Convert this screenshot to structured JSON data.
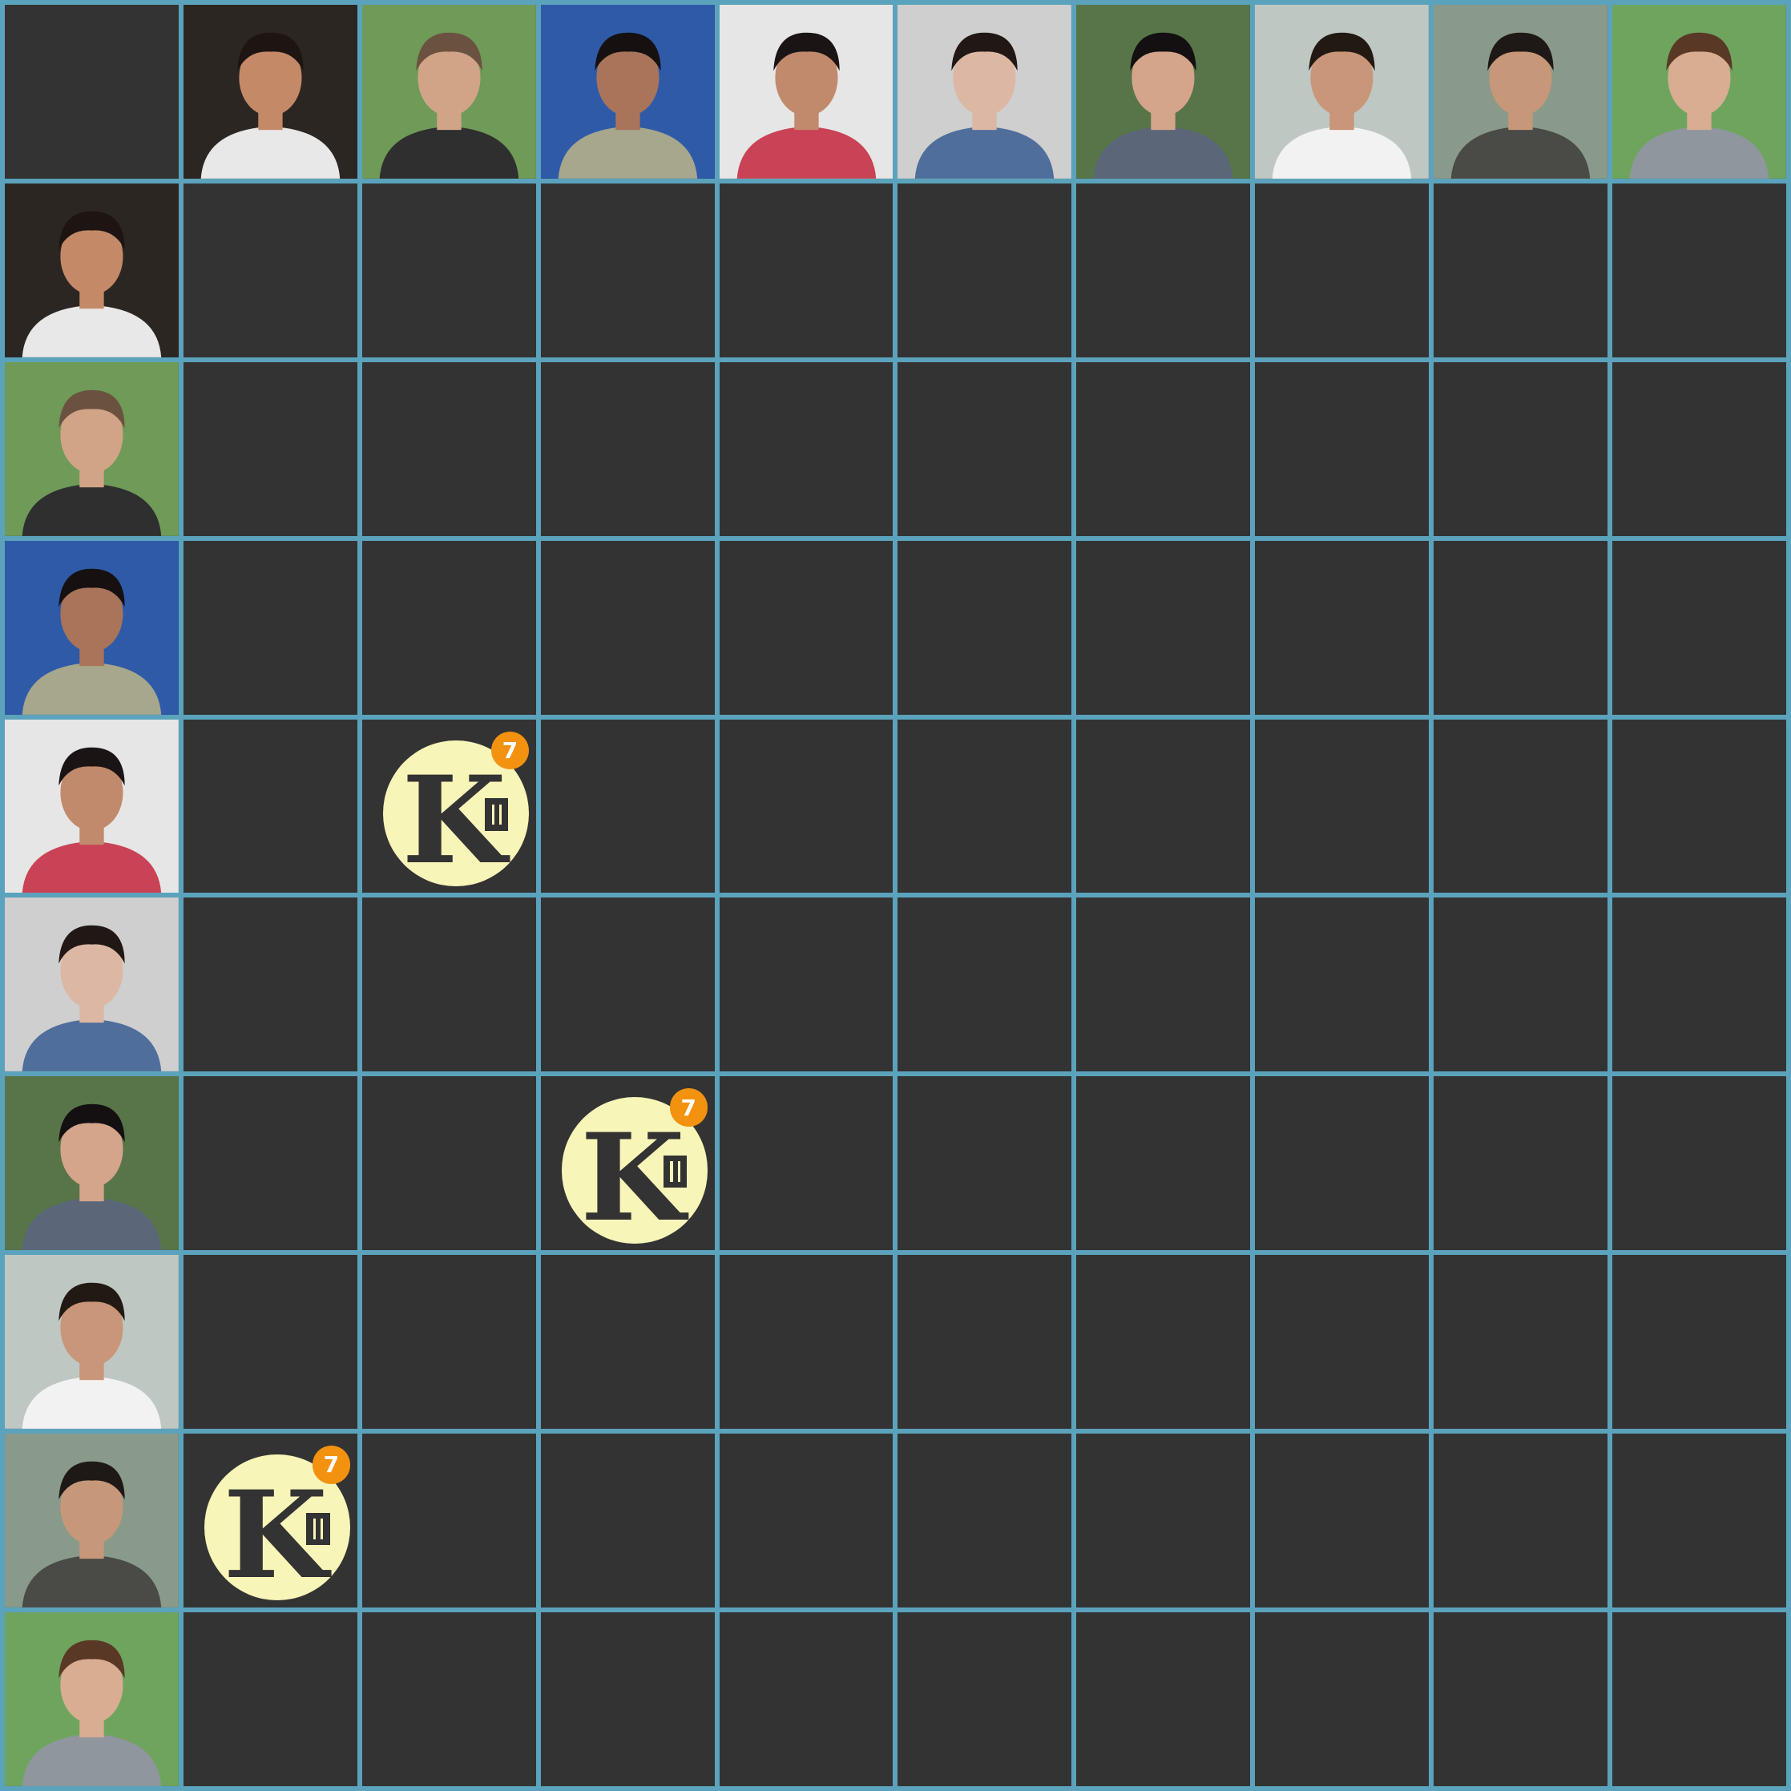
{
  "board": {
    "colors": {
      "grid": "#5ba3bc",
      "cell": "#333333",
      "badge": "#f8f5b8",
      "badge_dot": "#f2920f"
    },
    "players": [
      {
        "id": 1,
        "icon": "person-photo-icon",
        "skin": "#c48a68",
        "hair": "#1e1412",
        "shirt": "#e8e8e8",
        "bg": "#2c2623"
      },
      {
        "id": 2,
        "icon": "person-photo-icon",
        "skin": "#d1a487",
        "hair": "#6b5240",
        "shirt": "#2f2f2f",
        "bg": "#6f9a58"
      },
      {
        "id": 3,
        "icon": "person-photo-icon",
        "skin": "#a9745a",
        "hair": "#161010",
        "shirt": "#a6a78d",
        "bg": "#2e5aa8"
      },
      {
        "id": 4,
        "icon": "person-photo-icon",
        "skin": "#c18a6c",
        "hair": "#1a1414",
        "shirt": "#c94255",
        "bg": "#e6e6e6"
      },
      {
        "id": 5,
        "icon": "person-photo-icon",
        "skin": "#dcb8a4",
        "hair": "#211715",
        "shirt": "#4f6e9c",
        "bg": "#cfcfcf"
      },
      {
        "id": 6,
        "icon": "person-photo-icon",
        "skin": "#d4a58b",
        "hair": "#141011",
        "shirt": "#5b6678",
        "bg": "#58754a"
      },
      {
        "id": 7,
        "icon": "person-photo-icon",
        "skin": "#c99679",
        "hair": "#231913",
        "shirt": "#f2f2f2",
        "bg": "#bfc7c3"
      },
      {
        "id": 8,
        "icon": "person-photo-icon",
        "skin": "#c69778",
        "hair": "#1e1816",
        "shirt": "#4a4a46",
        "bg": "#8a9a8a"
      },
      {
        "id": 9,
        "icon": "person-photo-icon",
        "skin": "#d8ad92",
        "hair": "#5a3826",
        "shirt": "#8f969d",
        "bg": "#6fa45f"
      }
    ],
    "badges": [
      {
        "row": 5,
        "col": 3,
        "letter": "K",
        "count": "7",
        "icon": "k-logo-icon"
      },
      {
        "row": 7,
        "col": 4,
        "letter": "K",
        "count": "7",
        "icon": "k-logo-icon"
      },
      {
        "row": 9,
        "col": 2,
        "letter": "K",
        "count": "7",
        "icon": "k-logo-icon"
      }
    ]
  }
}
